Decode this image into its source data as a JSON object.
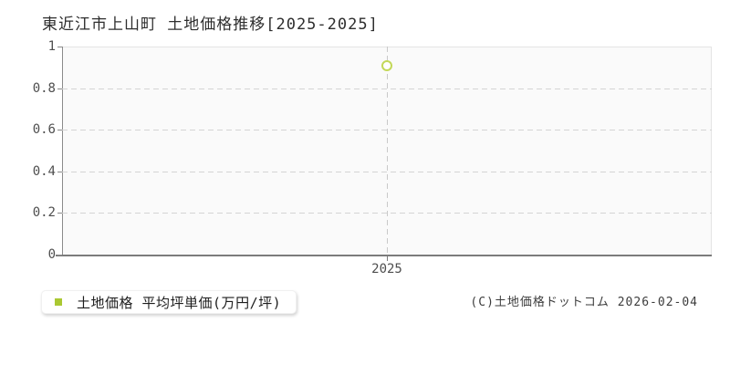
{
  "title": "東近江市上山町 土地価格推移[2025-2025]",
  "chart_data": {
    "type": "scatter",
    "title": "東近江市上山町 土地価格推移[2025-2025]",
    "x": [
      2025
    ],
    "xticks": [
      "2025"
    ],
    "series": [
      {
        "name": "土地価格 平均坪単価(万円/坪)",
        "values": [
          0.91
        ],
        "marker": "hollow-circle",
        "color": "#c3d858"
      }
    ],
    "xlabel": "",
    "ylabel": "",
    "ylim": [
      0,
      1
    ],
    "ytick_values": [
      0,
      0.2,
      0.4,
      0.6,
      0.8,
      1
    ],
    "ytick_labels": [
      "0",
      "0.2",
      "0.4",
      "0.6",
      "0.8",
      "1"
    ],
    "grid": "dashed",
    "legend_position": "bottom-left-outside"
  },
  "legend": {
    "swatch_color": "#aac832",
    "label": "土地価格 平均坪単価(万円/坪)"
  },
  "footer": {
    "copyright": "(C)土地価格ドットコム 2026-02-04"
  },
  "colors": {
    "marker_stroke": "#c3d858",
    "legend_swatch": "#aac832",
    "plot_background": "#fafafa",
    "gridline": "#d4d4d4",
    "axis": "#7b7b7b",
    "title_text": "#2e2e2e",
    "tick_text": "#4e4e4e"
  }
}
